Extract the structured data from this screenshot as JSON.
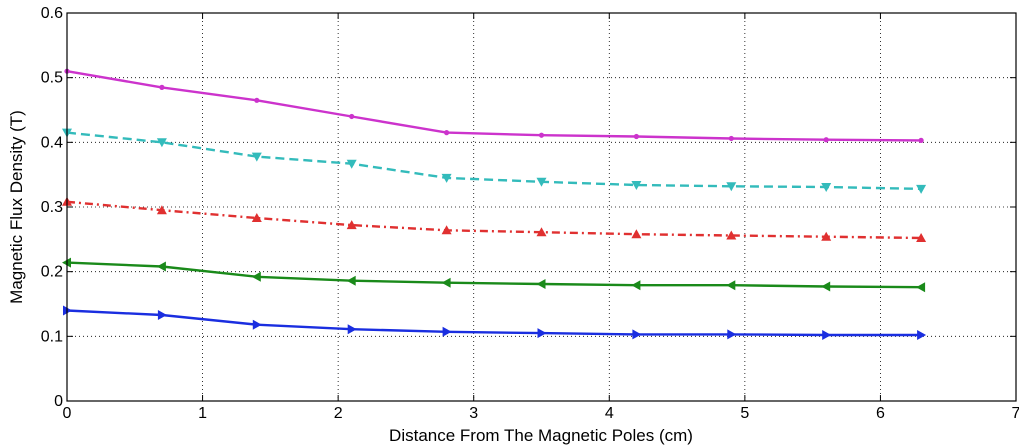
{
  "chart_data": {
    "type": "line",
    "title": "",
    "xlabel": "Distance From The Magnetic Poles (cm)",
    "ylabel": "Magnetic Flux Density (T)",
    "xlim": [
      0,
      7
    ],
    "ylim": [
      0,
      0.6
    ],
    "xticks": [
      0,
      1,
      2,
      3,
      4,
      5,
      6,
      7
    ],
    "yticks": [
      0,
      0.1,
      0.2,
      0.3,
      0.4,
      0.5,
      0.6
    ],
    "xtick_labels": [
      "0",
      "1",
      "2",
      "3",
      "4",
      "5",
      "6",
      "7"
    ],
    "ytick_labels": [
      "0",
      "0.1",
      "0.2",
      "0.3",
      "0.4",
      "0.5",
      "0.6"
    ],
    "grid": true,
    "x": [
      0,
      0.7,
      1.4,
      2.1,
      2.8,
      3.5,
      4.2,
      4.9,
      5.6,
      6.3
    ],
    "series": [
      {
        "values": [
          0.51,
          0.485,
          0.465,
          0.44,
          0.415,
          0.411,
          0.409,
          0.406,
          0.404,
          0.403
        ],
        "color": "#cc33cc",
        "line_style": "solid",
        "marker": "dot"
      },
      {
        "values": [
          0.415,
          0.4,
          0.378,
          0.367,
          0.345,
          0.339,
          0.334,
          0.332,
          0.331,
          0.328
        ],
        "color": "#33bbbb",
        "line_style": "dashed",
        "marker": "triangle-down"
      },
      {
        "values": [
          0.308,
          0.295,
          0.283,
          0.272,
          0.264,
          0.261,
          0.258,
          0.256,
          0.254,
          0.252
        ],
        "color": "#e03030",
        "line_style": "dashdot",
        "marker": "triangle-up"
      },
      {
        "values": [
          0.214,
          0.208,
          0.192,
          0.186,
          0.183,
          0.181,
          0.179,
          0.179,
          0.177,
          0.176
        ],
        "color": "#1a8a1a",
        "line_style": "solid",
        "marker": "triangle-left"
      },
      {
        "values": [
          0.14,
          0.133,
          0.118,
          0.111,
          0.107,
          0.105,
          0.103,
          0.103,
          0.102,
          0.102
        ],
        "color": "#1a2ee0",
        "line_style": "solid",
        "marker": "triangle-right"
      }
    ]
  }
}
